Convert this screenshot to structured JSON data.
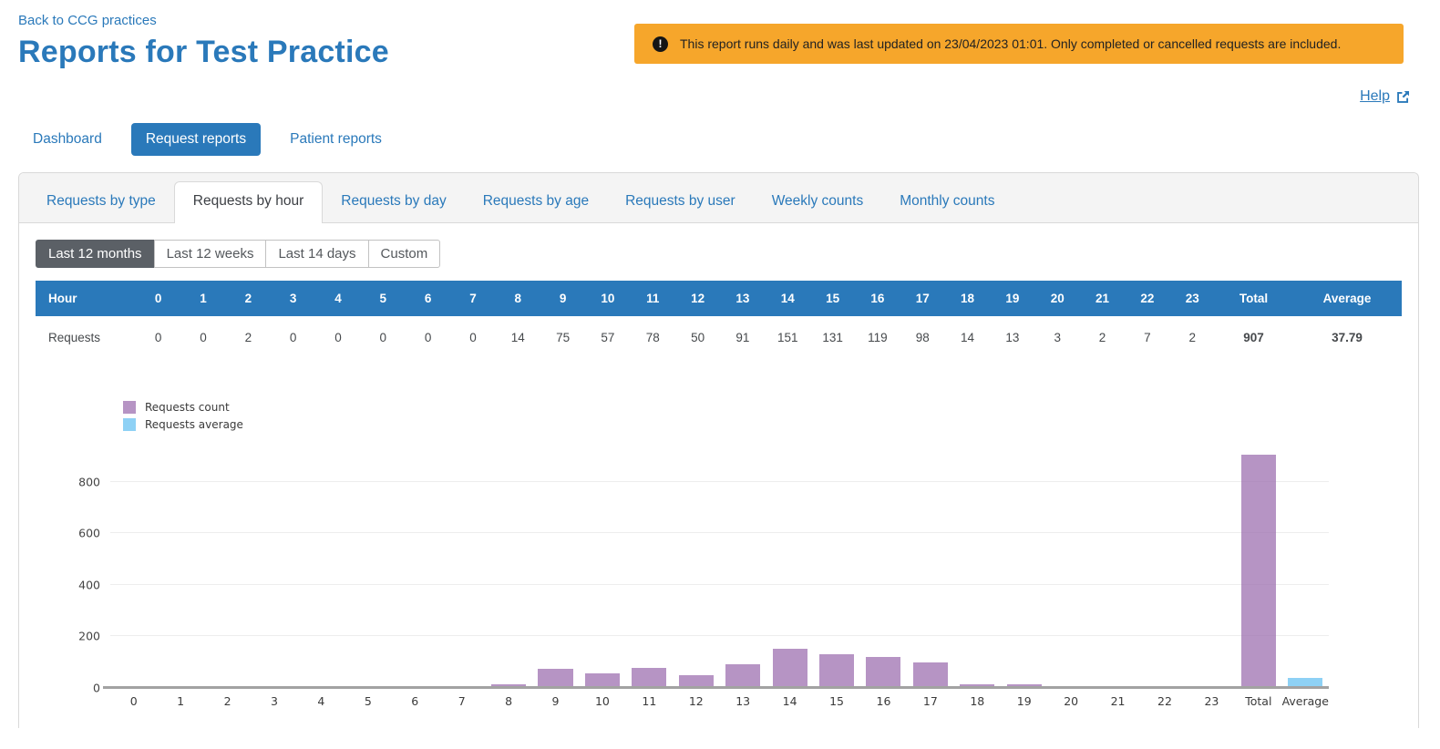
{
  "page": {
    "back_link": "Back to CCG practices",
    "title": "Reports for Test Practice",
    "banner": {
      "icon_glyph": "!",
      "text": "This report runs daily and was last updated on 23/04/2023 01:01. Only completed or cancelled requests are included.",
      "background": "#f6a62b"
    },
    "help_link": "Help"
  },
  "main_tabs": [
    {
      "label": "Dashboard",
      "active": false
    },
    {
      "label": "Request reports",
      "active": true
    },
    {
      "label": "Patient reports",
      "active": false
    }
  ],
  "report_tabs": [
    {
      "label": "Requests by type",
      "active": false
    },
    {
      "label": "Requests by hour",
      "active": true
    },
    {
      "label": "Requests by day",
      "active": false
    },
    {
      "label": "Requests by age",
      "active": false
    },
    {
      "label": "Requests by user",
      "active": false
    },
    {
      "label": "Weekly counts",
      "active": false
    },
    {
      "label": "Monthly counts",
      "active": false
    }
  ],
  "range_buttons": [
    {
      "label": "Last 12 months",
      "active": true
    },
    {
      "label": "Last 12 weeks",
      "active": false
    },
    {
      "label": "Last 14 days",
      "active": false
    },
    {
      "label": "Custom",
      "active": false
    }
  ],
  "table": {
    "header_first": "Hour",
    "hour_columns": [
      "0",
      "1",
      "2",
      "3",
      "4",
      "5",
      "6",
      "7",
      "8",
      "9",
      "10",
      "11",
      "12",
      "13",
      "14",
      "15",
      "16",
      "17",
      "18",
      "19",
      "20",
      "21",
      "22",
      "23"
    ],
    "header_total": "Total",
    "header_average": "Average",
    "row_label": "Requests",
    "row_values": [
      0,
      0,
      2,
      0,
      0,
      0,
      0,
      0,
      14,
      75,
      57,
      78,
      50,
      91,
      151,
      131,
      119,
      98,
      14,
      13,
      3,
      2,
      7,
      2
    ],
    "total": "907",
    "average": "37.79"
  },
  "chart_data": {
    "type": "bar",
    "categories": [
      "0",
      "1",
      "2",
      "3",
      "4",
      "5",
      "6",
      "7",
      "8",
      "9",
      "10",
      "11",
      "12",
      "13",
      "14",
      "15",
      "16",
      "17",
      "18",
      "19",
      "20",
      "21",
      "22",
      "23",
      "Total",
      "Average"
    ],
    "values": [
      0,
      0,
      2,
      0,
      0,
      0,
      0,
      0,
      14,
      75,
      57,
      78,
      50,
      91,
      151,
      131,
      119,
      98,
      14,
      13,
      3,
      2,
      7,
      2,
      907,
      37.79
    ],
    "series_index": [
      0,
      0,
      0,
      0,
      0,
      0,
      0,
      0,
      0,
      0,
      0,
      0,
      0,
      0,
      0,
      0,
      0,
      0,
      0,
      0,
      0,
      0,
      0,
      0,
      0,
      1
    ],
    "legend": [
      {
        "label": "Requests count",
        "color": "#b694c4",
        "bar_color": "rgba(157,112,176,0.75)"
      },
      {
        "label": "Requests average",
        "color": "#8ed1f5",
        "bar_color": "rgba(104,194,242,0.75)"
      }
    ],
    "title": "",
    "xlabel": "",
    "ylabel": "",
    "yticks": [
      0,
      200,
      400,
      600,
      800
    ],
    "ylim": [
      0,
      920
    ],
    "grid": true,
    "legend_position": "top-left"
  },
  "colors": {
    "accent_blue": "#2a79ba",
    "banner_orange": "#f6a62b",
    "range_active_gray": "#5b6066",
    "table_header_blue": "#2a79ba"
  }
}
